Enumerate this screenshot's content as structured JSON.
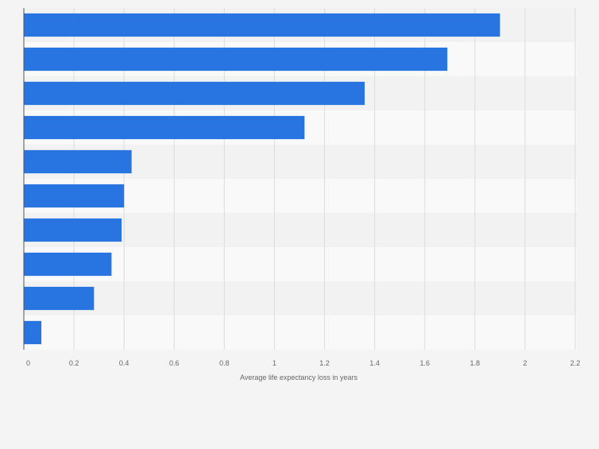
{
  "chart_data": {
    "type": "bar",
    "orientation": "horizontal",
    "title": "",
    "xlabel": "Average life expectancy loss in years",
    "ylabel": "",
    "xlim": [
      0,
      2.2
    ],
    "xticks": [
      0,
      0.2,
      0.4,
      0.6,
      0.8,
      1,
      1.2,
      1.4,
      1.6,
      1.8,
      2,
      2.2
    ],
    "xtick_labels": [
      "0",
      "0.2",
      "0.4",
      "0.6",
      "0.8",
      "1",
      "1.2",
      "1.4",
      "1.6",
      "1.8",
      "2",
      "2.2"
    ],
    "categories": [
      "",
      "",
      "",
      "",
      "",
      "",
      "",
      "",
      "",
      ""
    ],
    "values": [
      1.9,
      1.69,
      1.36,
      1.12,
      0.43,
      0.4,
      0.39,
      0.35,
      0.28,
      0.07
    ],
    "grid": true,
    "legend": "none"
  },
  "colors": {
    "bar": "#2874e0",
    "band_light": "#f9f9f9",
    "band_dark": "#f2f2f2",
    "gridline": "#dcdcdc",
    "axis": "#555555",
    "tick_text": "#666666",
    "page_background": "#f4f4f4"
  }
}
